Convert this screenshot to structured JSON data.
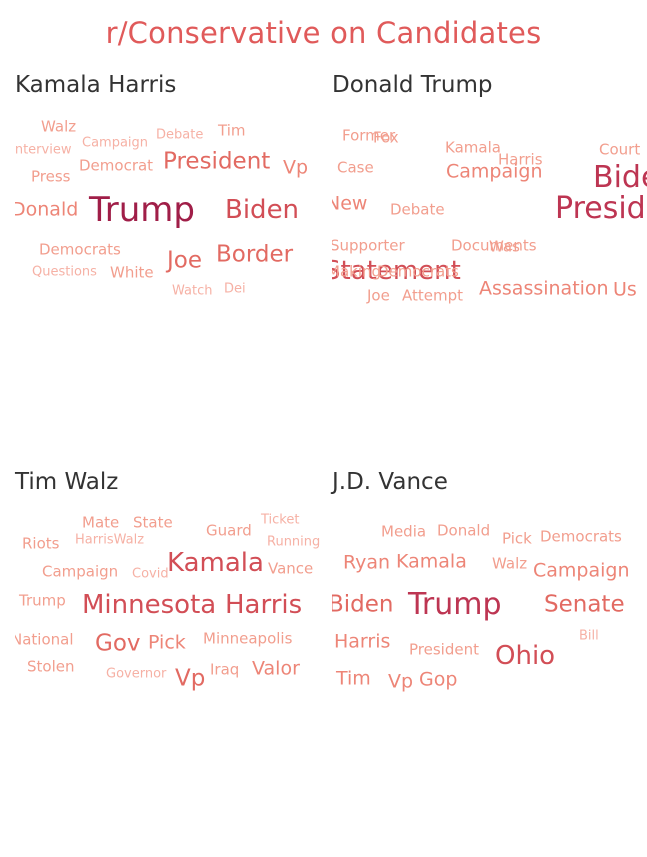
{
  "title": "r/Conservative on Candidates",
  "chart_data": [
    {
      "type": "wordcloud",
      "title": "Kamala Harris",
      "words": [
        {
          "text": "Walz",
          "weight": 1
        },
        {
          "text": "Campaign",
          "weight": 0
        },
        {
          "text": "Debate",
          "weight": 0
        },
        {
          "text": "Tim",
          "weight": 1
        },
        {
          "text": "Interview",
          "weight": 0
        },
        {
          "text": "Democrat",
          "weight": 1
        },
        {
          "text": "President",
          "weight": 3
        },
        {
          "text": "Vp",
          "weight": 2
        },
        {
          "text": "Press",
          "weight": 1
        },
        {
          "text": "Donald",
          "weight": 2
        },
        {
          "text": "Trump",
          "weight": 6
        },
        {
          "text": "Biden",
          "weight": 4
        },
        {
          "text": "Democrats",
          "weight": 1
        },
        {
          "text": "Joe",
          "weight": 3
        },
        {
          "text": "Border",
          "weight": 3
        },
        {
          "text": "Questions",
          "weight": 0
        },
        {
          "text": "White",
          "weight": 1
        },
        {
          "text": "Watch",
          "weight": 0
        },
        {
          "text": "Dei",
          "weight": 0
        }
      ]
    },
    {
      "type": "wordcloud",
      "title": "Donald Trump",
      "words": [
        {
          "text": "Former",
          "weight": 1
        },
        {
          "text": "Fox",
          "weight": 1
        },
        {
          "text": "Kamala",
          "weight": 1
        },
        {
          "text": "Court",
          "weight": 1
        },
        {
          "text": "Case",
          "weight": 1
        },
        {
          "text": "Campaign",
          "weight": 2
        },
        {
          "text": "Harris",
          "weight": 1
        },
        {
          "text": "Biden",
          "weight": 5
        },
        {
          "text": "New",
          "weight": 2
        },
        {
          "text": "Debate",
          "weight": 1
        },
        {
          "text": "President",
          "weight": 5
        },
        {
          "text": "Supporter",
          "weight": 1
        },
        {
          "text": "Documents",
          "weight": 1
        },
        {
          "text": "Was",
          "weight": 1
        },
        {
          "text": "Statement",
          "weight": 4
        },
        {
          "text": "Making",
          "weight": 1
        },
        {
          "text": "Democrats",
          "weight": 1
        },
        {
          "text": "Joe",
          "weight": 1
        },
        {
          "text": "Attempt",
          "weight": 1
        },
        {
          "text": "Assassination",
          "weight": 2
        },
        {
          "text": "Us",
          "weight": 2
        }
      ]
    },
    {
      "type": "wordcloud",
      "title": "Tim Walz",
      "words": [
        {
          "text": "Mate",
          "weight": 1
        },
        {
          "text": "State",
          "weight": 1
        },
        {
          "text": "Guard",
          "weight": 1
        },
        {
          "text": "Ticket",
          "weight": 0
        },
        {
          "text": "Riots",
          "weight": 1
        },
        {
          "text": "HarrisWalz",
          "weight": 0
        },
        {
          "text": "Running",
          "weight": 0
        },
        {
          "text": "Kamala",
          "weight": 4
        },
        {
          "text": "Campaign",
          "weight": 1
        },
        {
          "text": "Covid",
          "weight": 0
        },
        {
          "text": "Vance",
          "weight": 1
        },
        {
          "text": "Trump",
          "weight": 1
        },
        {
          "text": "Minnesota",
          "weight": 4
        },
        {
          "text": "Harris",
          "weight": 4
        },
        {
          "text": "National",
          "weight": 1
        },
        {
          "text": "Gov",
          "weight": 3
        },
        {
          "text": "Pick",
          "weight": 2
        },
        {
          "text": "Minneapolis",
          "weight": 1
        },
        {
          "text": "Stolen",
          "weight": 1
        },
        {
          "text": "Governor",
          "weight": 0
        },
        {
          "text": "Vp",
          "weight": 3
        },
        {
          "text": "Iraq",
          "weight": 1
        },
        {
          "text": "Valor",
          "weight": 2
        }
      ]
    },
    {
      "type": "wordcloud",
      "title": "J.D. Vance",
      "words": [
        {
          "text": "Media",
          "weight": 1
        },
        {
          "text": "Donald",
          "weight": 1
        },
        {
          "text": "Pick",
          "weight": 1
        },
        {
          "text": "Democrats",
          "weight": 1
        },
        {
          "text": "Ryan",
          "weight": 2
        },
        {
          "text": "Kamala",
          "weight": 2
        },
        {
          "text": "Walz",
          "weight": 1
        },
        {
          "text": "Campaign",
          "weight": 2
        },
        {
          "text": "Biden",
          "weight": 3
        },
        {
          "text": "Trump",
          "weight": 5
        },
        {
          "text": "Senate",
          "weight": 3
        },
        {
          "text": "Bill",
          "weight": 0
        },
        {
          "text": "Harris",
          "weight": 2
        },
        {
          "text": "President",
          "weight": 1
        },
        {
          "text": "Ohio",
          "weight": 4
        },
        {
          "text": "Tim",
          "weight": 2
        },
        {
          "text": "Vp",
          "weight": 2
        },
        {
          "text": "Gop",
          "weight": 2
        }
      ]
    }
  ]
}
